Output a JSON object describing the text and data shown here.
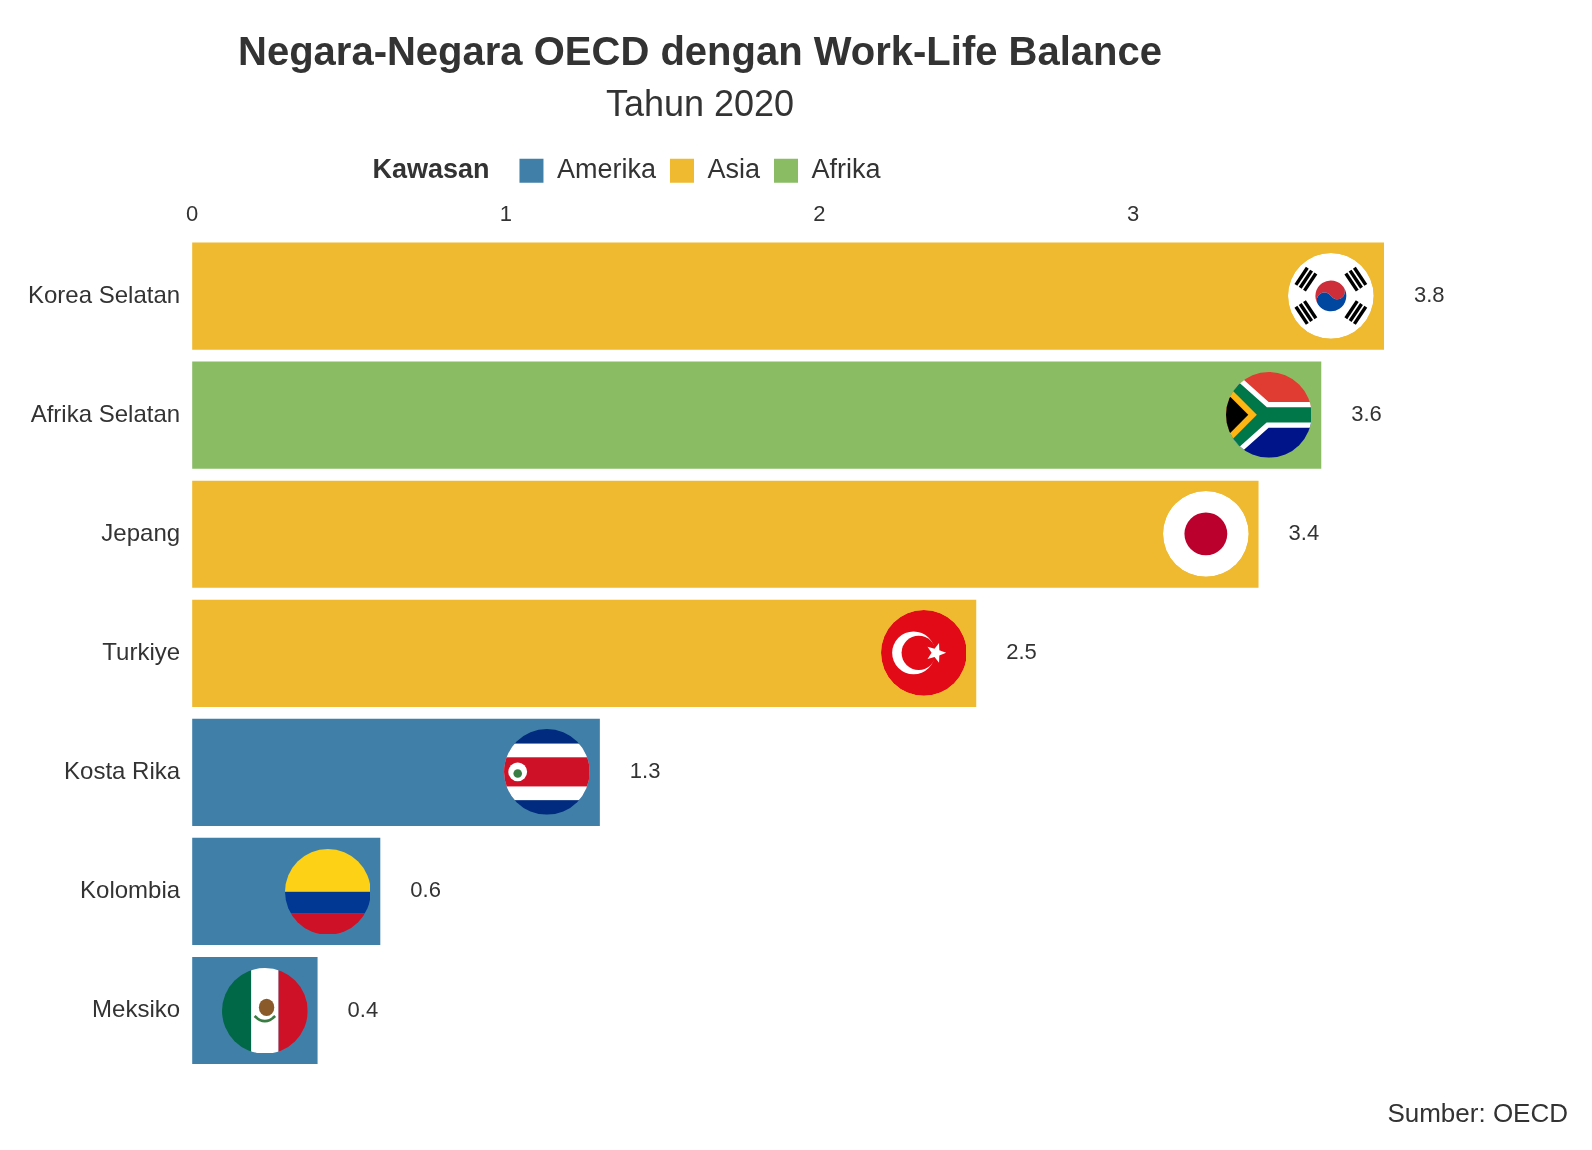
{
  "chart_data": {
    "type": "bar",
    "orientation": "horizontal",
    "title": "Negara-Negara OECD dengan Work-Life Balance",
    "subtitle": "Tahun 2020",
    "legend_title": "Kawasan",
    "categories": [
      "Korea Selatan",
      "Afrika Selatan",
      "Jepang",
      "Turkiye",
      "Kosta Rika",
      "Kolombia",
      "Meksiko"
    ],
    "series": [
      {
        "name": "Amerika",
        "color": "#4080a8",
        "values": [
          null,
          null,
          null,
          null,
          1.3,
          0.6,
          0.4
        ]
      },
      {
        "name": "Asia",
        "color": "#efba2f",
        "values": [
          3.8,
          null,
          3.4,
          2.5,
          null,
          null,
          null
        ]
      },
      {
        "name": "Afrika",
        "color": "#8abc64",
        "values": [
          null,
          3.6,
          null,
          null,
          null,
          null,
          null
        ]
      }
    ],
    "xlim": [
      0,
      3.8
    ],
    "xticks": [
      0,
      1,
      2,
      3
    ],
    "grid": false,
    "legend": "top",
    "data_labels": true,
    "annotations": [
      "Sumber: OECD"
    ]
  }
}
